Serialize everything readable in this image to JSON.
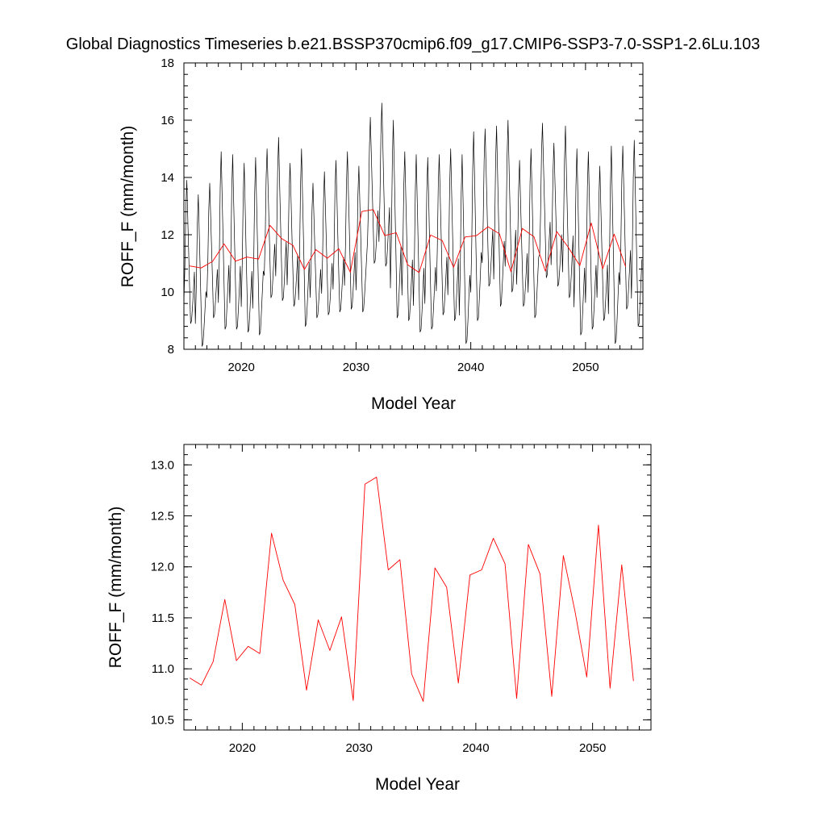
{
  "title": "Global Diagnostics Timeseries b.e21.BSSP370cmip6.f09_g17.CMIP6-SSP3-7.0-SSP1-2.6Lu.103",
  "colors": {
    "monthly": "#000000",
    "annual": "#ff0000",
    "axis": "#000000"
  },
  "chart_data": [
    {
      "type": "line",
      "xlabel": "Model Year",
      "ylabel": "ROFF_F (mm/month)",
      "xlim": [
        2015,
        2055
      ],
      "ylim": [
        8,
        18
      ],
      "xticks": [
        2020,
        2030,
        2040,
        2050
      ],
      "yticks": [
        8,
        10,
        12,
        14,
        16,
        18
      ],
      "yticklabels": [
        "8",
        "10",
        "12",
        "14",
        "16",
        "18"
      ],
      "series": [
        {
          "style": "monthly",
          "x_start": 2015.0,
          "x_step": 0.08333,
          "peaks": [
            13.9,
            13.4,
            13.8,
            14.9,
            14.8,
            14.5,
            14.7,
            15.0,
            15.4,
            14.5,
            15.0,
            13.8,
            14.2,
            14.6,
            14.9,
            14.4,
            16.1,
            16.6,
            16.0,
            14.9,
            14.8,
            14.7,
            14.8,
            15.0,
            14.8,
            15.6,
            15.7,
            15.8,
            16.0,
            14.6,
            15.0,
            15.9,
            15.2,
            15.8,
            15.0,
            14.9,
            14.4,
            15.1,
            15.1,
            15.3
          ],
          "troughs": [
            8.9,
            8.1,
            9.1,
            8.7,
            8.7,
            8.6,
            8.5,
            9.8,
            9.7,
            9.5,
            8.8,
            9.1,
            9.2,
            9.3,
            9.4,
            9.3,
            11.0,
            10.9,
            9.1,
            9.0,
            8.6,
            8.7,
            9.2,
            9.0,
            8.2,
            9.0,
            10.2,
            9.5,
            10.0,
            9.5,
            9.1,
            10.5,
            10.2,
            9.8,
            8.5,
            8.7,
            9.0,
            8.2,
            9.4,
            8.8
          ]
        },
        {
          "style": "annual",
          "x": [
            2015.5,
            2016.5,
            2017.5,
            2018.5,
            2019.5,
            2020.5,
            2021.5,
            2022.5,
            2023.5,
            2024.5,
            2025.5,
            2026.5,
            2027.5,
            2028.5,
            2029.5,
            2030.5,
            2031.5,
            2032.5,
            2033.5,
            2034.5,
            2035.5,
            2036.5,
            2037.5,
            2038.5,
            2039.5,
            2040.5,
            2041.5,
            2042.5,
            2043.5,
            2044.5,
            2045.5,
            2046.5,
            2047.5,
            2048.5,
            2049.5,
            2050.5,
            2051.5,
            2052.5,
            2053.5
          ],
          "values": [
            10.91,
            10.84,
            11.07,
            11.68,
            11.08,
            11.22,
            11.15,
            12.33,
            11.87,
            11.63,
            10.79,
            11.48,
            11.18,
            11.51,
            10.69,
            12.81,
            12.88,
            11.97,
            12.07,
            10.95,
            10.68,
            11.99,
            11.8,
            10.86,
            11.92,
            11.97,
            12.28,
            12.03,
            10.71,
            12.22,
            11.93,
            10.73,
            12.11,
            11.56,
            10.92,
            12.41,
            10.81,
            12.02,
            10.88
          ]
        }
      ]
    },
    {
      "type": "line",
      "xlabel": "Model Year",
      "ylabel": "ROFF_F (mm/month)",
      "xlim": [
        2015,
        2055
      ],
      "ylim": [
        10.4,
        13.2
      ],
      "xticks": [
        2020,
        2030,
        2040,
        2050
      ],
      "yticks": [
        10.5,
        11.0,
        11.5,
        12.0,
        12.5,
        13.0
      ],
      "yticklabels": [
        "10.5",
        "11.0",
        "11.5",
        "12.0",
        "12.5",
        "13.0"
      ],
      "series": [
        {
          "style": "annual",
          "x": [
            2015.5,
            2016.5,
            2017.5,
            2018.5,
            2019.5,
            2020.5,
            2021.5,
            2022.5,
            2023.5,
            2024.5,
            2025.5,
            2026.5,
            2027.5,
            2028.5,
            2029.5,
            2030.5,
            2031.5,
            2032.5,
            2033.5,
            2034.5,
            2035.5,
            2036.5,
            2037.5,
            2038.5,
            2039.5,
            2040.5,
            2041.5,
            2042.5,
            2043.5,
            2044.5,
            2045.5,
            2046.5,
            2047.5,
            2048.5,
            2049.5,
            2050.5,
            2051.5,
            2052.5,
            2053.5
          ],
          "values": [
            10.91,
            10.84,
            11.07,
            11.68,
            11.08,
            11.22,
            11.15,
            12.33,
            11.87,
            11.63,
            10.79,
            11.48,
            11.18,
            11.51,
            10.69,
            12.81,
            12.88,
            11.97,
            12.07,
            10.95,
            10.68,
            11.99,
            11.8,
            10.86,
            11.92,
            11.97,
            12.28,
            12.03,
            10.71,
            12.22,
            11.93,
            10.73,
            12.11,
            11.56,
            10.92,
            12.41,
            10.81,
            12.02,
            10.88
          ]
        }
      ]
    }
  ]
}
